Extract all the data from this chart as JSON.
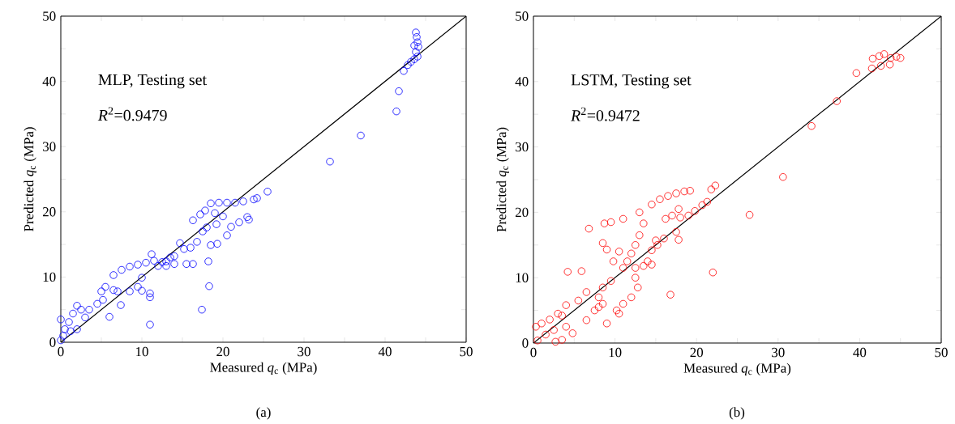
{
  "chart_data": [
    {
      "type": "scatter",
      "xlabel": "Measured *q*$_{c}$ (MPa)",
      "ylabel": "Predicted *q*$_{c}$ (MPa)",
      "annotations": [
        "MLP, Testing set",
        "*R*$^{2}$=0.9479",
        "(a)"
      ],
      "xlim": [
        0,
        50
      ],
      "ylim": [
        0,
        50
      ],
      "xticks": [
        0,
        {
          "value": 5,
          "label": null
        },
        10,
        {
          "value": 15,
          "label": null
        },
        20,
        {
          "value": 25,
          "label": null
        },
        30,
        {
          "value": 35,
          "label": null
        },
        40,
        {
          "value": 45,
          "label": null
        },
        50
      ],
      "yticks": [
        0,
        {
          "value": 5,
          "label": null
        },
        10,
        {
          "value": 15,
          "label": null
        },
        20,
        {
          "value": 25,
          "label": null
        },
        30,
        {
          "value": 35,
          "label": null
        },
        40,
        {
          "value": 45,
          "label": null
        },
        50
      ],
      "grid": false,
      "series": [
        {
          "marker": "circle",
          "color": "#0000ff",
          "x": [
            43.8,
            43.9,
            44,
            44.1,
            43.8,
            44,
            43.6,
            43.2,
            43.6,
            42.8,
            42.3,
            41.7,
            41.4,
            37,
            33.2,
            25.5,
            24.2,
            23.8,
            22.5,
            21.5,
            20.5,
            19.5,
            18.5,
            17.8,
            17.2,
            16.3,
            19,
            20,
            19.2,
            18,
            23.2,
            23,
            22,
            21,
            20.5,
            19.3,
            18.5,
            17.5,
            16.8,
            16,
            15.2,
            14.7,
            14,
            13,
            16.3,
            15.5,
            14,
            13,
            12,
            11.5,
            11.2,
            10.5,
            9.5,
            8.5,
            7.5,
            6.5,
            5.5,
            6.5,
            7,
            8.5,
            10,
            11,
            11,
            9.5,
            10,
            5,
            5.2,
            4.5,
            3.5,
            2.5,
            2,
            1.5,
            1,
            0.5,
            0,
            0.3,
            0,
            18.2,
            18.3,
            17.4,
            11,
            6,
            7.4,
            3,
            2,
            1.2,
            12.5,
            13.5
          ],
          "values": [
            47.5,
            46.8,
            46,
            45.3,
            44.5,
            43.8,
            43.4,
            43,
            45.5,
            42.5,
            41.6,
            38.5,
            35.4,
            31.7,
            27.7,
            23.1,
            22.1,
            21.9,
            21.6,
            21.4,
            21.4,
            21.4,
            21.3,
            20.2,
            19.6,
            18.7,
            19.8,
            19.3,
            18.1,
            17.6,
            18.8,
            19.2,
            18.4,
            17.7,
            16.4,
            15.1,
            14.9,
            17,
            15.4,
            14.5,
            14.3,
            15.2,
            13.2,
            12.4,
            12,
            12,
            12,
            11.7,
            11.7,
            12.5,
            13.5,
            12.2,
            11.9,
            11.6,
            11.1,
            10.3,
            8.5,
            8,
            7.8,
            7.8,
            7.9,
            7.5,
            6.9,
            8.5,
            9.9,
            7.8,
            6.5,
            5.9,
            5,
            5,
            5.6,
            4.4,
            3.1,
            2,
            3.5,
            1,
            0.3,
            12.4,
            8.6,
            5,
            2.7,
            3.9,
            5.7,
            3.8,
            2,
            1.7,
            12.3,
            13
          ]
        },
        {
          "type": "line",
          "marker": "none",
          "color": "#000000",
          "x": [
            0,
            50
          ],
          "values": [
            0,
            50
          ]
        }
      ]
    },
    {
      "type": "scatter",
      "xlabel": "Measured *q*$_{c}$ (MPa)",
      "ylabel": "Predicted *q*$_{c}$ (MPa)",
      "annotations": [
        "LSTM, Testing set",
        "*R*$^{2}$=0.9472",
        "(b)"
      ],
      "xlim": [
        0,
        50
      ],
      "ylim": [
        0,
        50
      ],
      "xticks": [
        0,
        {
          "value": 5,
          "label": null
        },
        10,
        {
          "value": 15,
          "label": null
        },
        20,
        {
          "value": 25,
          "label": null
        },
        30,
        {
          "value": 35,
          "label": null
        },
        40,
        {
          "value": 45,
          "label": null
        },
        50
      ],
      "yticks": [
        0,
        {
          "value": 5,
          "label": null
        },
        10,
        {
          "value": 15,
          "label": null
        },
        20,
        {
          "value": 25,
          "label": null
        },
        30,
        {
          "value": 35,
          "label": null
        },
        40,
        {
          "value": 45,
          "label": null
        },
        50
      ],
      "grid": false,
      "series": [
        {
          "marker": "circle",
          "color": "#ff0000",
          "x": [
            41.6,
            42.4,
            43,
            43.8,
            44.5,
            45,
            41.5,
            42.6,
            43.7,
            39.6,
            37.2,
            34.1,
            30.6,
            26.5,
            22,
            16.8,
            22.3,
            21.8,
            21.3,
            20.7,
            19.8,
            19.2,
            18.5,
            17.5,
            16.5,
            15.5,
            14.5,
            13,
            11,
            9.5,
            8.7,
            6.8,
            17.8,
            17,
            16.2,
            18,
            17.5,
            17.8,
            16,
            15.2,
            14.5,
            14,
            13.5,
            13,
            12.5,
            12,
            11.5,
            11,
            12.5,
            12.5,
            12.8,
            12,
            11,
            10.5,
            8.5,
            9,
            9.8,
            10.5,
            9.5,
            8.5,
            8,
            8,
            8.5,
            6.5,
            5.5,
            4.2,
            5.9,
            4,
            3,
            2,
            1,
            0.3,
            3.5,
            2.5,
            1.5,
            0.5,
            4,
            4.8,
            3.5,
            2.7,
            6.5,
            7.5,
            9,
            10.2,
            14.5,
            19,
            15,
            13.5
          ],
          "values": [
            43.5,
            43.9,
            44.2,
            43.6,
            43.8,
            43.6,
            42,
            42.4,
            42.6,
            41.3,
            37,
            33.2,
            25.4,
            19.6,
            10.8,
            7.4,
            24.1,
            23.5,
            21.6,
            21.1,
            20.2,
            23.3,
            23.2,
            22.9,
            22.5,
            22,
            21.2,
            20,
            19,
            18.5,
            18.3,
            17.5,
            20.5,
            19.5,
            19,
            19.2,
            17,
            15.8,
            16,
            15,
            14.2,
            12.5,
            18.3,
            16.5,
            15,
            13.7,
            12.5,
            11.5,
            11.5,
            10,
            8.5,
            7,
            6,
            4.5,
            15.3,
            14.3,
            12.5,
            14,
            9.5,
            8.5,
            7,
            5.5,
            6,
            7.8,
            6.5,
            10.9,
            11,
            5.8,
            4.5,
            3.6,
            3,
            2.5,
            4.2,
            2,
            1.3,
            0.4,
            2.5,
            1.5,
            0.5,
            0.2,
            3.5,
            5,
            3,
            5,
            12,
            19.5,
            15.7,
            11.8
          ]
        },
        {
          "type": "line",
          "marker": "none",
          "color": "#000000",
          "x": [
            0,
            50
          ],
          "values": [
            0,
            50
          ]
        }
      ]
    }
  ]
}
